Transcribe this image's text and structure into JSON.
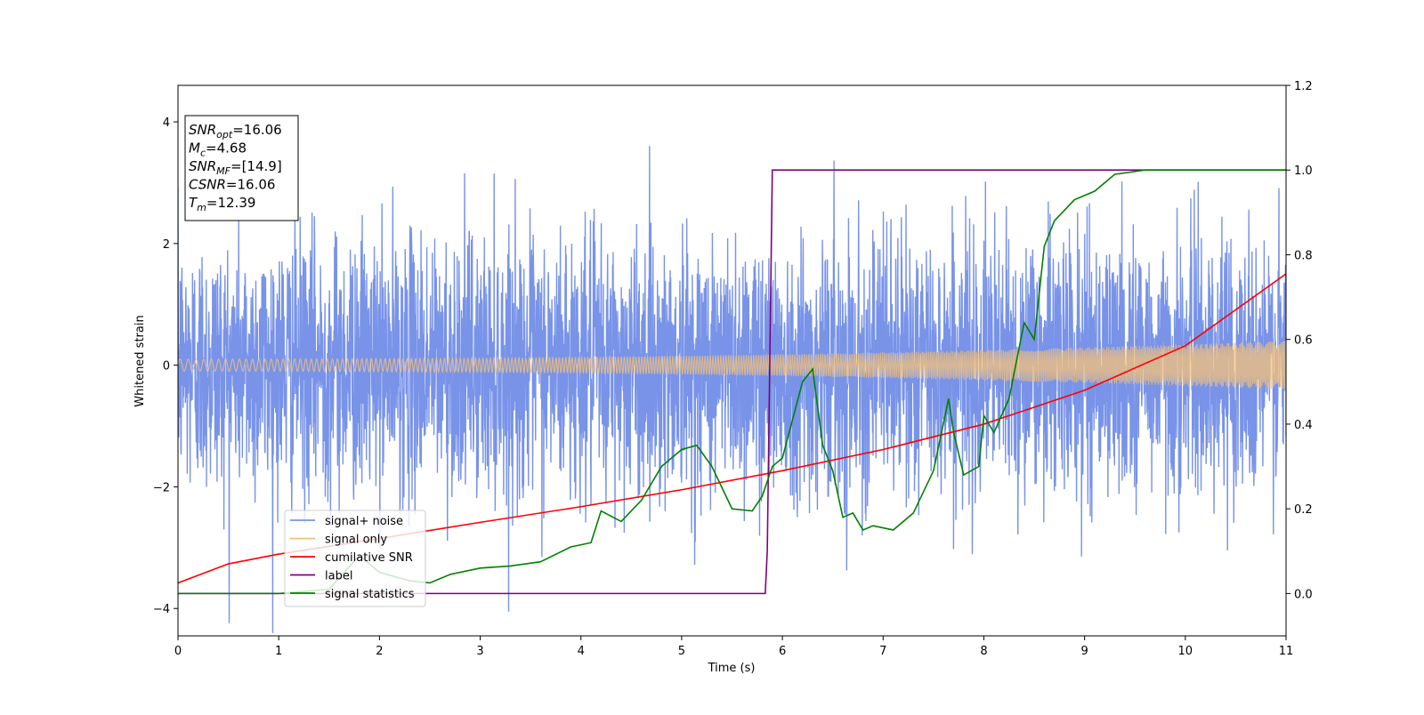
{
  "chart_data": {
    "type": "line",
    "xlabel": "Time (s)",
    "ylabel": "Whitened strain",
    "xlim": [
      0,
      11
    ],
    "ylim": [
      -4.45,
      4.6
    ],
    "y2lim": [
      -0.1,
      1.2
    ],
    "xticks": [
      0,
      1,
      2,
      3,
      4,
      5,
      6,
      7,
      8,
      9,
      10,
      11
    ],
    "yticks": [
      -4,
      -2,
      0,
      2,
      4
    ],
    "y2ticks": [
      0.0,
      0.2,
      0.4,
      0.6,
      0.8,
      1.0,
      1.2
    ],
    "y2tick_labels": [
      "0.0",
      "0.2",
      "0.4",
      "0.6",
      "0.8",
      "1.0",
      "1.2"
    ],
    "grid": false,
    "legend_position": "lower-left",
    "info_box": {
      "lines": [
        {
          "name": "SNR",
          "sub": "opt",
          "value": "=16.06"
        },
        {
          "name": "M",
          "sub": "c",
          "value": "=4.68"
        },
        {
          "name": "SNR",
          "sub": "MF",
          "value": "=[14.9]"
        },
        {
          "name": "CSNR",
          "sub": "",
          "value": "=16.06"
        },
        {
          "name": "T",
          "sub": "m",
          "value": "=12.39"
        }
      ]
    },
    "series": [
      {
        "name": "signal+ noise",
        "axis": "left",
        "color": "#7893e8",
        "kind": "noise",
        "description_values": {
          "std": 1.0,
          "signal_envelope_start": 0.1,
          "signal_envelope_end": 0.4
        }
      },
      {
        "name": "signal only",
        "axis": "left",
        "color": "#f5c27a",
        "kind": "chirp",
        "amplitude_start": 0.1,
        "amplitude_end": 0.4
      },
      {
        "name": "cumilative SNR",
        "axis": "right",
        "color": "#ff0000",
        "x": [
          0,
          0.5,
          1,
          2,
          3,
          4,
          5,
          6,
          7,
          8,
          9,
          10,
          11
        ],
        "y": [
          0.025,
          0.07,
          0.093,
          0.13,
          0.168,
          0.205,
          0.245,
          0.29,
          0.34,
          0.4,
          0.48,
          0.585,
          0.755
        ]
      },
      {
        "name": "label",
        "axis": "right",
        "color": "#800080",
        "x": [
          0,
          5.83,
          5.85,
          5.9,
          11
        ],
        "y": [
          0.0,
          0.0,
          0.1,
          1.0,
          1.0
        ]
      },
      {
        "name": "signal statistics",
        "axis": "right",
        "color": "#008000",
        "x": [
          0,
          0.5,
          1.0,
          1.5,
          1.8,
          2.0,
          2.3,
          2.5,
          2.7,
          3.0,
          3.3,
          3.6,
          3.9,
          4.1,
          4.2,
          4.4,
          4.6,
          4.8,
          5.0,
          5.15,
          5.3,
          5.5,
          5.7,
          5.8,
          5.9,
          6.0,
          6.2,
          6.3,
          6.4,
          6.5,
          6.6,
          6.7,
          6.8,
          6.9,
          7.1,
          7.3,
          7.5,
          7.65,
          7.7,
          7.8,
          7.95,
          8.0,
          8.1,
          8.25,
          8.4,
          8.5,
          8.6,
          8.7,
          8.9,
          9.1,
          9.3,
          9.6,
          10.0,
          10.5,
          11.0
        ],
        "y": [
          0.0,
          0.0,
          0.0,
          0.01,
          0.09,
          0.05,
          0.03,
          0.025,
          0.045,
          0.06,
          0.065,
          0.075,
          0.11,
          0.12,
          0.195,
          0.17,
          0.22,
          0.3,
          0.34,
          0.35,
          0.3,
          0.2,
          0.195,
          0.23,
          0.3,
          0.32,
          0.5,
          0.53,
          0.35,
          0.29,
          0.18,
          0.19,
          0.15,
          0.16,
          0.15,
          0.19,
          0.29,
          0.46,
          0.38,
          0.28,
          0.3,
          0.42,
          0.38,
          0.46,
          0.64,
          0.6,
          0.82,
          0.88,
          0.93,
          0.95,
          0.99,
          1.0,
          1.0,
          1.0,
          1.0
        ]
      }
    ]
  }
}
